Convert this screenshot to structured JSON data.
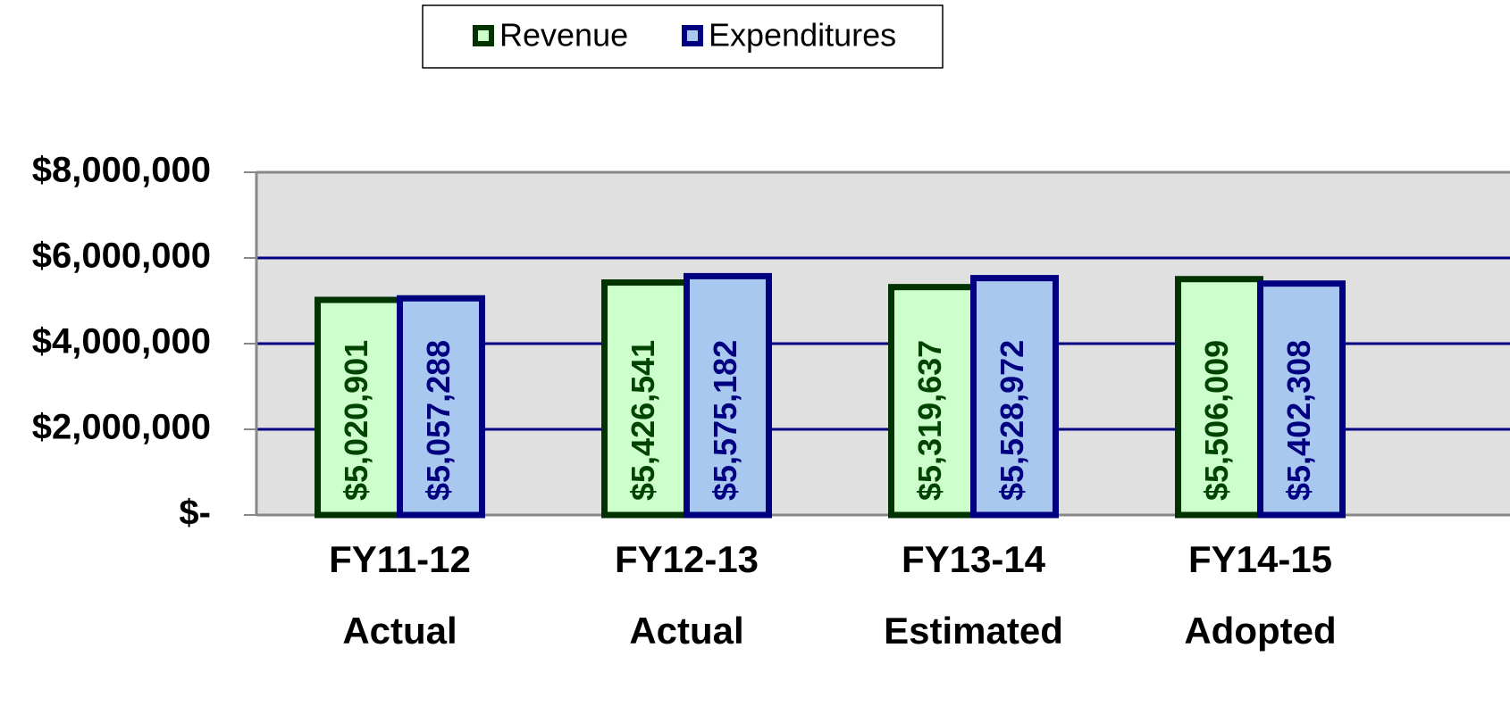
{
  "chart_data": {
    "type": "bar",
    "categories": [
      [
        "FY11-12",
        "Actual"
      ],
      [
        "FY12-13",
        "Actual"
      ],
      [
        "FY13-14",
        "Estimated"
      ],
      [
        "FY14-15",
        "Adopted"
      ]
    ],
    "series": [
      {
        "name": "Revenue",
        "color": "#ccffcc",
        "border": "#003300",
        "label_color": "#004400",
        "values": [
          5020901,
          5426541,
          5319637,
          5506009
        ],
        "value_labels": [
          "$5,020,901",
          "$5,426,541",
          "$5,319,637",
          "$5,506,009"
        ]
      },
      {
        "name": "Expenditures",
        "color": "#a8c8f0",
        "border": "#000080",
        "label_color": "#000080",
        "values": [
          5057288,
          5575182,
          5528972,
          5402308
        ],
        "value_labels": [
          "$5,057,288",
          "$5,575,182",
          "$5,528,972",
          "$5,402,308"
        ]
      }
    ],
    "ylim": [
      0,
      8000000
    ],
    "yticks": [
      {
        "value": 0,
        "label": "$-"
      },
      {
        "value": 2000000,
        "label": "$2,000,000"
      },
      {
        "value": 4000000,
        "label": "$4,000,000"
      },
      {
        "value": 6000000,
        "label": "$6,000,000"
      },
      {
        "value": 8000000,
        "label": "$8,000,000"
      }
    ],
    "grid": true,
    "legend": "top"
  }
}
